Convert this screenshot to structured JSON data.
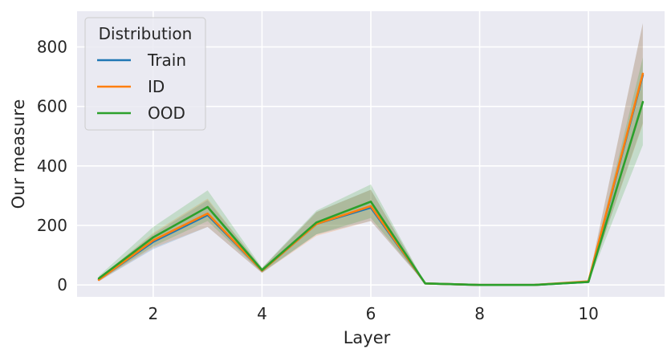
{
  "chart_data": {
    "type": "line",
    "xlabel": "Layer",
    "ylabel": "Our measure",
    "xlim": [
      0.6,
      11.4
    ],
    "ylim": [
      -40,
      920
    ],
    "xticks": [
      2,
      4,
      6,
      8,
      10
    ],
    "yticks": [
      0,
      200,
      400,
      600,
      800
    ],
    "grid": true,
    "background": "#eaeaf2",
    "x": [
      1,
      2,
      3,
      4,
      5,
      6,
      7,
      8,
      9,
      10,
      11
    ],
    "legend": {
      "title": "Distribution",
      "position": "top-left"
    },
    "series": [
      {
        "name": "Train",
        "color": "#1f77b4",
        "values": [
          18,
          145,
          235,
          48,
          205,
          260,
          5,
          0,
          0,
          10,
          705
        ],
        "lower": [
          12,
          120,
          195,
          40,
          170,
          215,
          4,
          0,
          0,
          8,
          545
        ],
        "upper": [
          24,
          170,
          285,
          56,
          245,
          320,
          6,
          0,
          0,
          14,
          880
        ]
      },
      {
        "name": "ID",
        "color": "#ff7f0e",
        "values": [
          17,
          150,
          240,
          48,
          205,
          265,
          5,
          0,
          0,
          12,
          710
        ],
        "lower": [
          12,
          125,
          195,
          40,
          165,
          215,
          4,
          0,
          0,
          9,
          540
        ],
        "upper": [
          22,
          175,
          290,
          56,
          245,
          320,
          6,
          0,
          0,
          15,
          880
        ]
      },
      {
        "name": "OOD",
        "color": "#2ca02c",
        "values": [
          22,
          160,
          262,
          50,
          210,
          280,
          5,
          0,
          0,
          10,
          615
        ],
        "lower": [
          14,
          130,
          215,
          42,
          170,
          225,
          4,
          0,
          0,
          8,
          470
        ],
        "upper": [
          30,
          195,
          318,
          58,
          250,
          338,
          6,
          0,
          0,
          12,
          765
        ]
      }
    ]
  }
}
